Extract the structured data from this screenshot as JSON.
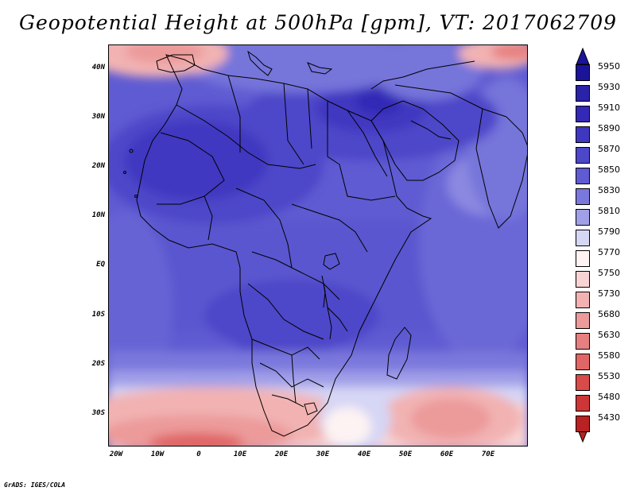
{
  "title": "Geopotential Height at 500hPa [gpm], VT: 2017062709",
  "map": {
    "region": "Africa and Middle East",
    "latitude_labels": [
      "40N",
      "30N",
      "20N",
      "10N",
      "EQ",
      "10S",
      "20S",
      "30S"
    ],
    "longitude_labels": [
      "20W",
      "10W",
      "0",
      "10E",
      "20E",
      "30E",
      "40E",
      "50E",
      "60E",
      "70E"
    ]
  },
  "colorbar": {
    "levels": [
      {
        "label": "5950",
        "color": "#1b1498"
      },
      {
        "label": "5930",
        "color": "#2a22a8"
      },
      {
        "label": "5910",
        "color": "#3329b6"
      },
      {
        "label": "5890",
        "color": "#3f37c0"
      },
      {
        "label": "5870",
        "color": "#4d47c9"
      },
      {
        "label": "5850",
        "color": "#5f5bd2"
      },
      {
        "label": "5830",
        "color": "#7a78dc"
      },
      {
        "label": "5810",
        "color": "#a09fe8"
      },
      {
        "label": "5790",
        "color": "#d6d6f5"
      },
      {
        "label": "5770",
        "color": "#fdf3f3"
      },
      {
        "label": "5750",
        "color": "#f8d4d4"
      },
      {
        "label": "5730",
        "color": "#f2b2b2"
      },
      {
        "label": "5680",
        "color": "#ec9a9a"
      },
      {
        "label": "5630",
        "color": "#e67f7f"
      },
      {
        "label": "5580",
        "color": "#e06565"
      },
      {
        "label": "5530",
        "color": "#d94a4a"
      },
      {
        "label": "5480",
        "color": "#cd3636"
      },
      {
        "label": "5430",
        "color": "#b82222"
      }
    ]
  },
  "credit": "GrADS: IGES/COLA"
}
